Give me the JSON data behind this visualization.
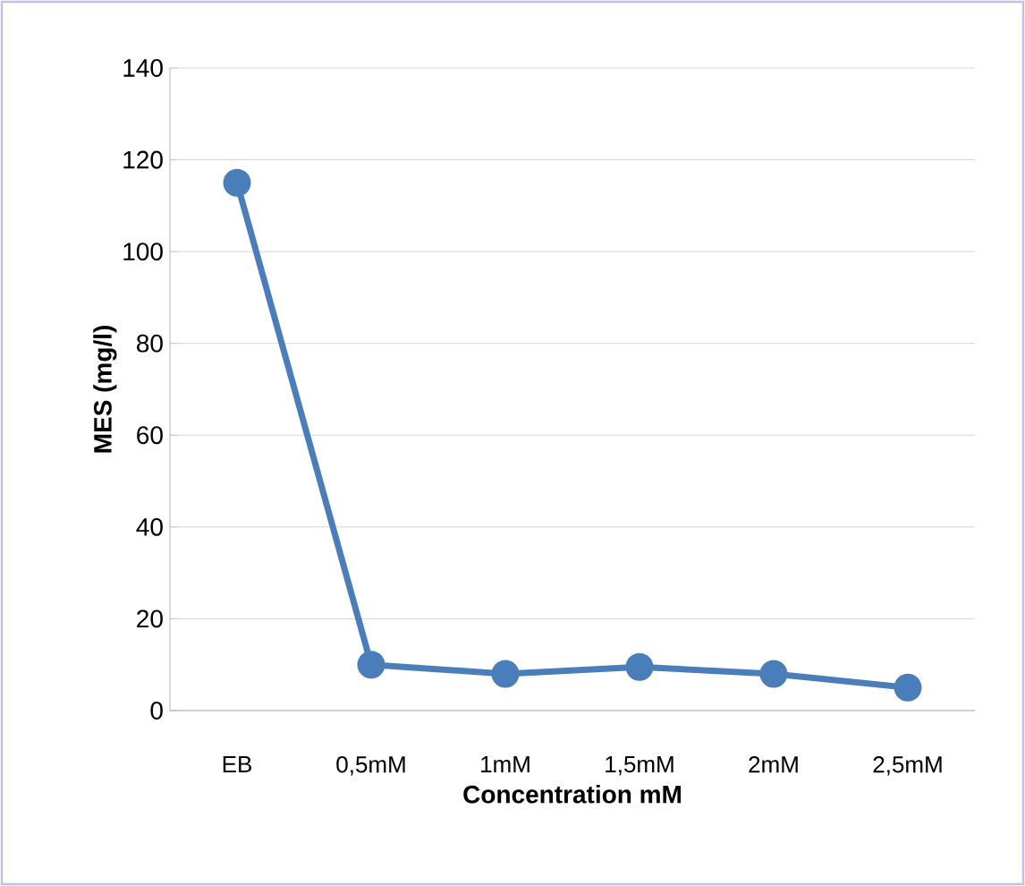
{
  "chart_data": {
    "type": "line",
    "xlabel": "Concentration mM",
    "ylabel": "MES (mg/l)",
    "categories": [
      "EB",
      "0,5mM",
      "1mM",
      "1,5mM",
      "2mM",
      "2,5mM"
    ],
    "values": [
      115,
      10,
      8,
      9.5,
      8,
      5
    ],
    "color": "#4a7ebb",
    "marker": "circle",
    "line_style": "solid",
    "grid": "y",
    "ylim": [
      0,
      140
    ],
    "yticks": [
      0,
      20,
      40,
      60,
      80,
      100,
      120,
      140
    ]
  }
}
